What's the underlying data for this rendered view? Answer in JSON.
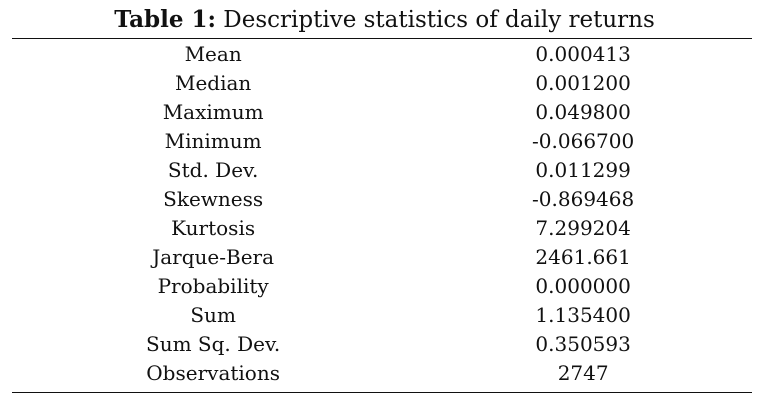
{
  "caption": {
    "label": "Table 1:",
    "text": "Descriptive statistics of daily returns"
  },
  "table": {
    "rows": [
      {
        "stat": "Mean",
        "value": "0.000413"
      },
      {
        "stat": "Median",
        "value": "0.001200"
      },
      {
        "stat": "Maximum",
        "value": "0.049800"
      },
      {
        "stat": "Minimum",
        "value": "-0.066700"
      },
      {
        "stat": "Std. Dev.",
        "value": "0.011299"
      },
      {
        "stat": "Skewness",
        "value": "-0.869468"
      },
      {
        "stat": "Kurtosis",
        "value": "7.299204"
      },
      {
        "stat": "Jarque-Bera",
        "value": "2461.661"
      },
      {
        "stat": "Probability",
        "value": "0.000000"
      },
      {
        "stat": "Sum",
        "value": "1.135400"
      },
      {
        "stat": "Sum Sq. Dev.",
        "value": "0.350593"
      },
      {
        "stat": "Observations",
        "value": "2747"
      }
    ]
  }
}
